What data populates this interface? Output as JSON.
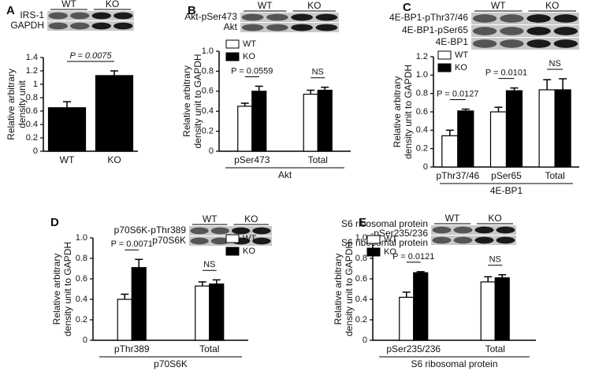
{
  "chart_data": [
    {
      "type": "bar",
      "letter": "A",
      "blot_labels": [
        "IRS-1",
        "GAPDH"
      ],
      "lanes": [
        "WT",
        "KO"
      ],
      "ylabel": [
        "Relative arbitrary",
        "density unit"
      ],
      "categories": [
        "WT",
        "KO"
      ],
      "values": [
        0.65,
        1.13
      ],
      "errors": [
        0.09,
        0.07
      ],
      "color": "#000000",
      "ylim": [
        0,
        1.4
      ],
      "yticks": [
        0,
        0.2,
        0.4,
        0.6,
        0.8,
        1,
        1.2,
        1.4
      ],
      "annotations": [
        "P = 0.0075"
      ]
    },
    {
      "type": "grouped-bar",
      "letter": "B",
      "blot_labels": [
        "Akt-pSer473",
        "Akt"
      ],
      "lanes": [
        "WT",
        "KO"
      ],
      "ylabel": [
        "Relative arbitrary",
        "density unit to GAPDH"
      ],
      "categories": [
        "pSer473",
        "Total"
      ],
      "group_label": "Akt",
      "series": [
        {
          "name": "WT",
          "color": "#ffffff",
          "values": [
            0.45,
            0.57
          ],
          "errors": [
            0.03,
            0.04
          ]
        },
        {
          "name": "KO",
          "color": "#000000",
          "values": [
            0.6,
            0.61
          ],
          "errors": [
            0.05,
            0.03
          ]
        }
      ],
      "ylim": [
        0,
        1
      ],
      "yticks": [
        0,
        0.2,
        0.4,
        0.6,
        0.8,
        {
          "value": 1,
          "label": "1.0"
        }
      ],
      "annotations": [
        "P = 0.0559",
        "NS"
      ]
    },
    {
      "type": "grouped-bar",
      "letter": "C",
      "blot_labels": [
        "4E-BP1-pThr37/46",
        "4E-BP1-pSer65",
        "4E-BP1"
      ],
      "lanes": [
        "WT",
        "KO"
      ],
      "ylabel": [
        "Relative arbitrary",
        "density unit to GAPDH"
      ],
      "categories": [
        "pThr37/46",
        "pSer65",
        "Total"
      ],
      "group_label": "4E-BP1",
      "series": [
        {
          "name": "WT",
          "color": "#ffffff",
          "values": [
            0.34,
            0.6,
            0.84
          ],
          "errors": [
            0.06,
            0.05,
            0.11
          ]
        },
        {
          "name": "KO",
          "color": "#000000",
          "values": [
            0.61,
            0.83,
            0.84
          ],
          "errors": [
            0.02,
            0.03,
            0.12
          ]
        }
      ],
      "ylim": [
        0,
        1.2
      ],
      "yticks": [
        0,
        0.2,
        0.4,
        0.6,
        0.8,
        {
          "value": 1,
          "label": "1.0"
        },
        1.2
      ],
      "annotations": [
        "P = 0.0127",
        "P = 0.0101",
        "NS"
      ]
    },
    {
      "type": "grouped-bar",
      "letter": "D",
      "blot_labels": [
        "p70S6K-pThr389",
        "p70S6K"
      ],
      "lanes": [
        "WT",
        "KO"
      ],
      "ylabel": [
        "Relative arbitrary",
        "density unit to GAPDH"
      ],
      "categories": [
        "pThr389",
        "Total"
      ],
      "group_label": "p70S6K",
      "series": [
        {
          "name": "WT",
          "color": "#ffffff",
          "values": [
            0.4,
            0.53
          ],
          "errors": [
            0.05,
            0.04
          ]
        },
        {
          "name": "KO",
          "color": "#000000",
          "values": [
            0.71,
            0.55
          ],
          "errors": [
            0.08,
            0.04
          ]
        }
      ],
      "ylim": [
        0,
        1
      ],
      "yticks": [
        0,
        0.2,
        0.4,
        0.6,
        0.8,
        {
          "value": 1,
          "label": "1.0"
        }
      ],
      "annotations": [
        "P = 0.0071",
        "NS"
      ]
    },
    {
      "type": "grouped-bar",
      "letter": "E",
      "blot_labels": [
        "S6 ribosomal protein",
        "-pSer235/236",
        "S6 ribosomal protein"
      ],
      "lanes": [
        "WT",
        "KO"
      ],
      "ylabel": [
        "Relative arbitrary",
        "density unit to GAPDH"
      ],
      "categories": [
        "pSer235/236",
        "Total"
      ],
      "group_label": "S6 ribosomal protein",
      "series": [
        {
          "name": "WT",
          "color": "#ffffff",
          "values": [
            0.42,
            0.57
          ],
          "errors": [
            0.05,
            0.05
          ]
        },
        {
          "name": "KO",
          "color": "#000000",
          "values": [
            0.66,
            0.61
          ],
          "errors": [
            0.01,
            0.03
          ]
        }
      ],
      "ylim": [
        0,
        1
      ],
      "yticks": [
        0,
        0.2,
        0.4,
        0.6,
        0.8,
        {
          "value": 1,
          "label": "1.0"
        }
      ],
      "annotations": [
        "P = 0.0121",
        "NS"
      ]
    }
  ]
}
